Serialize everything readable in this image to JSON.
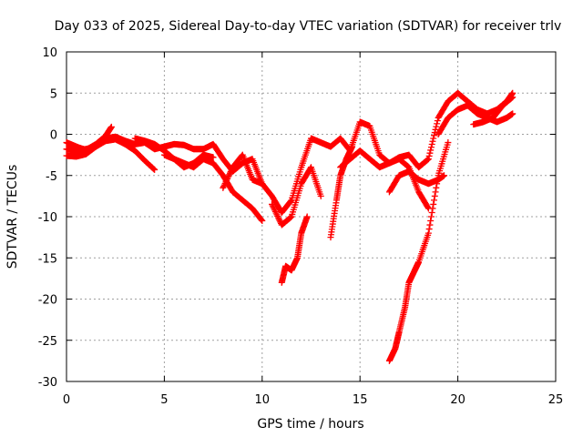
{
  "chart_data": {
    "type": "scatter",
    "title": "Day 033 of 2025, Sidereal Day-to-day VTEC variation (SDTVAR) for receiver trlv",
    "xlabel": "GPS time / hours",
    "ylabel": "SDTVAR / TECUs",
    "xlim": [
      0,
      25
    ],
    "ylim": [
      -30,
      10
    ],
    "xticks": [
      0,
      5,
      10,
      15,
      20,
      25
    ],
    "yticks": [
      -30,
      -25,
      -20,
      -15,
      -10,
      -5,
      0,
      5,
      10
    ],
    "grid": true,
    "marker": "+",
    "color": "#ff0000",
    "series": [
      {
        "x": [
          0,
          0.5,
          1,
          1.5,
          2,
          2.5,
          3,
          3.5,
          4,
          4.5,
          5,
          5.5,
          6,
          6.5,
          7,
          7.5,
          8,
          8.5,
          9,
          9.5,
          10
        ],
        "y": [
          -1.8,
          -2.0,
          -1.8,
          -1.5,
          -0.5,
          -0.3,
          -0.8,
          -1.2,
          -1.0,
          -1.8,
          -1.5,
          -1.2,
          -1.3,
          -1.8,
          -1.8,
          -1.2,
          -3.0,
          -4.5,
          -3.5,
          -3.0,
          -6.0
        ]
      },
      {
        "x": [
          0,
          0.5,
          1,
          1.5,
          2,
          2.5,
          3,
          3.5,
          4,
          4.5
        ],
        "y": [
          -2.6,
          -2.7,
          -2.4,
          -1.5,
          -0.8,
          -0.6,
          -1.2,
          -2.0,
          -3.2,
          -4.3
        ]
      },
      {
        "x": [
          0,
          0.3,
          0.6,
          1,
          1.5,
          2,
          2.3
        ],
        "y": [
          -1.0,
          -1.3,
          -1.6,
          -1.9,
          -1.2,
          -0.2,
          0.9
        ]
      },
      {
        "x": [
          3.5,
          4,
          4.5,
          5,
          5.5,
          6,
          6.5,
          7,
          7.5
        ],
        "y": [
          -0.5,
          -0.8,
          -1.2,
          -2.0,
          -3.0,
          -4.0,
          -3.5,
          -2.5,
          -2.8
        ]
      },
      {
        "x": [
          5,
          5.5,
          6,
          6.5,
          7,
          7.5,
          8,
          8.5,
          9,
          9.5,
          10
        ],
        "y": [
          -2.5,
          -3.0,
          -3.5,
          -4.0,
          -3.0,
          -3.5,
          -5.0,
          -7.0,
          -8.0,
          -9.0,
          -10.5
        ]
      },
      {
        "x": [
          8,
          8.5,
          9,
          9.5,
          10,
          10.5,
          11,
          11.5,
          12,
          12.5,
          13,
          13.5,
          14,
          14.5,
          15,
          15.5,
          16,
          16.5,
          17,
          17.5,
          18,
          18.5,
          19,
          19.5,
          20,
          20.5,
          21,
          21.5,
          22,
          22.5,
          22.8
        ],
        "y": [
          -6.5,
          -4.0,
          -2.5,
          -5.5,
          -6.0,
          -7.5,
          -9.5,
          -8.0,
          -4.0,
          -0.5,
          -1.0,
          -1.5,
          -0.5,
          -2.0,
          1.5,
          1.0,
          -2.5,
          -3.5,
          -2.8,
          -2.5,
          -4.0,
          -3.0,
          2.0,
          4.0,
          5.0,
          4.0,
          3.0,
          2.5,
          3.0,
          4.0,
          5.0
        ]
      },
      {
        "x": [
          10.5,
          11,
          11.5,
          12,
          12.5,
          13
        ],
        "y": [
          -8.5,
          -11.0,
          -10.0,
          -6.0,
          -4.0,
          -7.5
        ]
      },
      {
        "x": [
          11,
          11.2,
          11.5,
          11.8,
          12,
          12.3
        ],
        "y": [
          -18.0,
          -16.0,
          -16.5,
          -15.0,
          -12.0,
          -10.0
        ]
      },
      {
        "x": [
          13.5,
          13.8,
          14,
          14.3,
          14.6
        ],
        "y": [
          -12.5,
          -8.0,
          -5.0,
          -3.0,
          -1.5
        ]
      },
      {
        "x": [
          14,
          14.5,
          15,
          15.5,
          16,
          16.5,
          17,
          17.5,
          18,
          18.5
        ],
        "y": [
          -4.0,
          -3.0,
          -2.0,
          -3.0,
          -4.0,
          -3.5,
          -3.0,
          -4.0,
          -7.0,
          -9.0
        ]
      },
      {
        "x": [
          16.5,
          17,
          17.5,
          18,
          18.5,
          19,
          19.3
        ],
        "y": [
          -7.0,
          -5.0,
          -4.5,
          -5.5,
          -6.0,
          -5.5,
          -5.0
        ]
      },
      {
        "x": [
          16.5,
          16.8,
          17,
          17.3,
          17.5,
          17.8,
          18,
          18.5,
          19,
          19.5
        ],
        "y": [
          -27.5,
          -26.0,
          -24.0,
          -21.0,
          -18.0,
          -16.5,
          -15.5,
          -12.0,
          -5.0,
          -1.0
        ]
      },
      {
        "x": [
          19,
          19.5,
          20,
          20.5,
          21,
          21.5,
          22,
          22.5,
          22.8
        ],
        "y": [
          0.0,
          2.0,
          3.0,
          3.5,
          2.5,
          2.0,
          1.5,
          2.0,
          2.5
        ]
      },
      {
        "x": [
          20.8,
          21.3,
          21.8,
          22.3,
          22.8
        ],
        "y": [
          1.2,
          1.5,
          2.0,
          3.5,
          4.5
        ]
      }
    ]
  }
}
